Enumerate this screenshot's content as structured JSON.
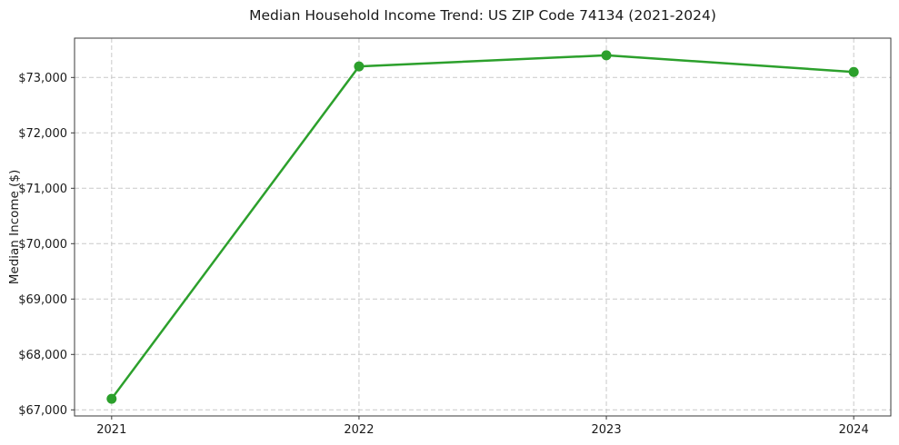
{
  "chart_data": {
    "type": "line",
    "title": "Median Household Income Trend: US ZIP Code 74134 (2021-2024)",
    "xlabel": "",
    "ylabel": "Median Income ($)",
    "categories": [
      "2021",
      "2022",
      "2023",
      "2024"
    ],
    "x": [
      2021,
      2022,
      2023,
      2024
    ],
    "series": [
      {
        "name": "Median Household Income",
        "values": [
          67200,
          73200,
          73400,
          73100
        ]
      }
    ],
    "ylim": [
      66890,
      73710
    ],
    "xlim": [
      2020.85,
      2024.15
    ],
    "yticks": [
      67000,
      68000,
      69000,
      70000,
      71000,
      72000,
      73000
    ],
    "ytick_labels": [
      "$67,000",
      "$68,000",
      "$69,000",
      "$70,000",
      "$71,000",
      "$72,000",
      "$73,000"
    ],
    "xticks": [
      2021,
      2022,
      2023,
      2024
    ],
    "xtick_labels": [
      "2021",
      "2022",
      "2023",
      "2024"
    ],
    "grid": true,
    "grid_line_style": "dashed",
    "legend_position": "none",
    "marker": "circle",
    "colors": {
      "line": "#2ca02c",
      "marker": "#2ca02c",
      "grid": "#c9c9c9",
      "axis": "#3a3a3a",
      "text": "#1a1a1a",
      "background": "#ffffff"
    }
  }
}
